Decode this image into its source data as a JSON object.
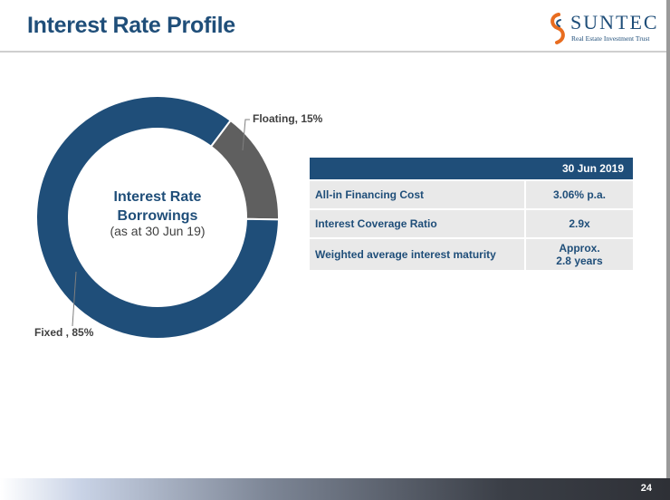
{
  "slide": {
    "title": "Interest Rate Profile",
    "page_number": "24"
  },
  "logo": {
    "brand": "SUNTEC",
    "subtitle": "Real Estate Investment Trust"
  },
  "chart_data": {
    "type": "pie",
    "variant": "donut",
    "title": "Interest Rate Borrowings",
    "subtitle": "(as at 30 Jun 19)",
    "categories": [
      "Floating",
      "Fixed"
    ],
    "values": [
      15,
      85
    ],
    "unit": "%",
    "colors": [
      "#5f5f5f",
      "#1f4e79"
    ],
    "labels": [
      "Floating, 15%",
      "Fixed , 85%"
    ]
  },
  "table": {
    "header": "30 Jun 2019",
    "rows": [
      {
        "label": "All-in Financing Cost",
        "value": "3.06% p.a.",
        "value2": ""
      },
      {
        "label": "Interest Coverage Ratio",
        "value": "2.9x",
        "value2": ""
      },
      {
        "label": "Weighted average interest maturity",
        "value": "Approx.",
        "value2": "2.8 years"
      }
    ]
  },
  "colors": {
    "brand_blue": "#1f4e79",
    "accent_orange": "#e86c1f",
    "cell_grey": "#e9e9e9"
  }
}
